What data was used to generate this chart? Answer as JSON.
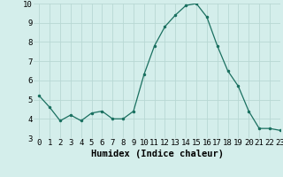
{
  "x": [
    0,
    1,
    2,
    3,
    4,
    5,
    6,
    7,
    8,
    9,
    10,
    11,
    12,
    13,
    14,
    15,
    16,
    17,
    18,
    19,
    20,
    21,
    22,
    23
  ],
  "y": [
    5.2,
    4.6,
    3.9,
    4.2,
    3.9,
    4.3,
    4.4,
    4.0,
    4.0,
    4.4,
    6.3,
    7.8,
    8.8,
    9.4,
    9.9,
    10.0,
    9.3,
    7.8,
    6.5,
    5.7,
    4.4,
    3.5,
    3.5,
    3.4
  ],
  "xlabel": "Humidex (Indice chaleur)",
  "ylim": [
    3,
    10
  ],
  "xlim": [
    -0.5,
    23
  ],
  "line_color": "#1a7060",
  "bg_color": "#d4eeeb",
  "grid_color": "#b8d8d4",
  "tick_label_fontsize": 6.5,
  "xlabel_fontsize": 7.5
}
